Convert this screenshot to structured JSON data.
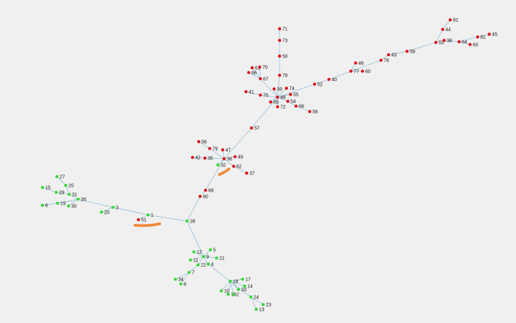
{
  "nodes": [
    {
      "label": "71"
    },
    {
      "label": "73"
    },
    {
      "label": "50"
    },
    {
      "label": "78"
    },
    {
      "label": "74"
    },
    {
      "label": "39"
    },
    {
      "label": "48"
    },
    {
      "label": "55"
    },
    {
      "label": "75"
    },
    {
      "label": "41"
    },
    {
      "label": "65"
    },
    {
      "label": "72"
    },
    {
      "label": "54"
    },
    {
      "label": "68"
    },
    {
      "label": "58"
    },
    {
      "label": "61"
    },
    {
      "label": "70"
    },
    {
      "label": "66"
    },
    {
      "label": "67"
    },
    {
      "label": "52"
    },
    {
      "label": "40"
    },
    {
      "label": "77"
    },
    {
      "label": "60"
    },
    {
      "label": "46"
    },
    {
      "label": "76"
    },
    {
      "label": "43"
    },
    {
      "label": "59"
    },
    {
      "label": "53"
    },
    {
      "label": "44"
    },
    {
      "label": "82"
    },
    {
      "label": "38"
    },
    {
      "label": "64"
    },
    {
      "label": "63"
    },
    {
      "label": "81"
    },
    {
      "label": "45"
    },
    {
      "label": "57"
    },
    {
      "label": "56"
    },
    {
      "label": "79"
    },
    {
      "label": "47"
    },
    {
      "label": "42"
    },
    {
      "label": "35"
    },
    {
      "label": "36"
    },
    {
      "label": "49"
    },
    {
      "label": "62"
    },
    {
      "label": "37"
    },
    {
      "label": "69"
    },
    {
      "label": "80"
    },
    {
      "label": "51"
    },
    {
      "label": "32"
    },
    {
      "label": "28"
    },
    {
      "label": "1"
    },
    {
      "label": "3"
    },
    {
      "label": "20"
    },
    {
      "label": "26"
    },
    {
      "label": "31"
    },
    {
      "label": "29"
    },
    {
      "label": "15"
    },
    {
      "label": "25"
    },
    {
      "label": "27"
    },
    {
      "label": "19"
    },
    {
      "label": "6"
    },
    {
      "label": "30"
    },
    {
      "label": "12"
    },
    {
      "label": "5"
    },
    {
      "label": "9"
    },
    {
      "label": "21"
    },
    {
      "label": "11"
    },
    {
      "label": "4"
    },
    {
      "label": "22"
    },
    {
      "label": "7"
    },
    {
      "label": "34"
    },
    {
      "label": "8"
    },
    {
      "label": "18"
    },
    {
      "label": "17"
    },
    {
      "label": "14"
    },
    {
      "label": "33"
    },
    {
      "label": "10"
    },
    {
      "label": "16"
    },
    {
      "label": "2"
    },
    {
      "label": "24"
    },
    {
      "label": "23"
    },
    {
      "label": "13"
    }
  ]
}
